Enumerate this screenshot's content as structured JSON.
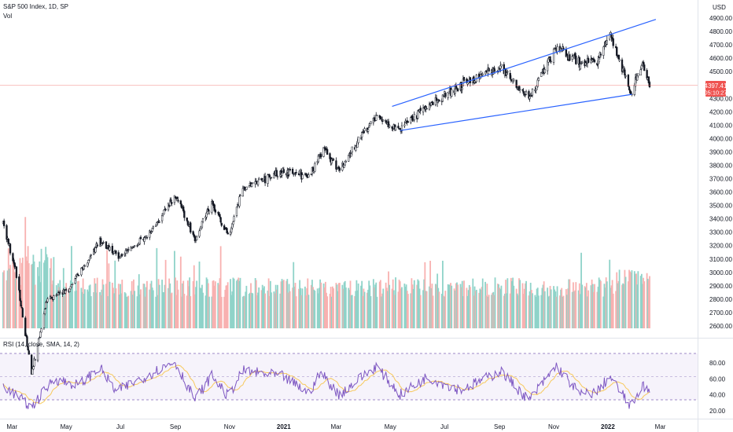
{
  "header": {
    "title": "S&P 500 Index, 1D, SP",
    "vol_label": "Vol",
    "currency": "USD"
  },
  "price_tag": {
    "value": "4397.41",
    "countdown": "05:10:27",
    "color": "#ef5350"
  },
  "rsi_header": {
    "label": "RSI (14, close, SMA, 14, 2)"
  },
  "colors": {
    "up": "#26a69a",
    "down": "#ef5350",
    "candle": "#131722",
    "trendline": "#2962ff",
    "rsi": "#7e57c2",
    "rsi_ma": "#f7c95c",
    "vol_up": "#8fd3c9",
    "vol_down": "#f8b1b0"
  },
  "chart_data": [
    {
      "type": "candlestick",
      "title": "S&P 500 Index, 1D, SP",
      "ylim": [
        2600,
        5000
      ],
      "y_ticks": [
        "4900.00",
        "4800.00",
        "4700.00",
        "4600.00",
        "4500.00",
        "4300.00",
        "4200.00",
        "4100.00",
        "4000.00",
        "3900.00",
        "3800.00",
        "3700.00",
        "3600.00",
        "3500.00",
        "3400.00",
        "3300.00",
        "3200.00",
        "3100.00",
        "3000.00",
        "2900.00",
        "2800.00",
        "2700.00",
        "2600.00"
      ],
      "x_ticks": [
        "Mar",
        "May",
        "Jul",
        "Sep",
        "Nov",
        "2021",
        "Mar",
        "May",
        "Jul",
        "Sep",
        "Nov",
        "2022",
        "Mar"
      ],
      "last_price": 4397.41,
      "close_path": [
        [
          "2020-02-20",
          3370
        ],
        [
          "2020-03-05",
          3020
        ],
        [
          "2020-03-23",
          2240
        ],
        [
          "2020-04-09",
          2790
        ],
        [
          "2020-05-05",
          2880
        ],
        [
          "2020-06-08",
          3230
        ],
        [
          "2020-07-01",
          3120
        ],
        [
          "2020-08-01",
          3280
        ],
        [
          "2020-09-02",
          3580
        ],
        [
          "2020-09-23",
          3240
        ],
        [
          "2020-10-12",
          3530
        ],
        [
          "2020-10-30",
          3270
        ],
        [
          "2020-11-16",
          3620
        ],
        [
          "2020-12-31",
          3756
        ],
        [
          "2021-01-29",
          3714
        ],
        [
          "2021-02-15",
          3930
        ],
        [
          "2021-03-04",
          3770
        ],
        [
          "2021-04-15",
          4170
        ],
        [
          "2021-05-12",
          4063
        ],
        [
          "2021-06-11",
          4247
        ],
        [
          "2021-07-26",
          4422
        ],
        [
          "2021-08-27",
          4509
        ],
        [
          "2021-09-02",
          4537
        ],
        [
          "2021-10-04",
          4300
        ],
        [
          "2021-11-04",
          4680
        ],
        [
          "2021-11-30",
          4567
        ],
        [
          "2021-12-20",
          4568
        ],
        [
          "2022-01-03",
          4796
        ],
        [
          "2022-01-27",
          4326
        ],
        [
          "2022-02-09",
          4587
        ],
        [
          "2022-02-17",
          4397
        ]
      ],
      "trendlines": [
        {
          "name": "upper",
          "from": [
            "2021-05-03",
            4240
          ],
          "to": [
            "2022-02-24",
            4890
          ]
        },
        {
          "name": "lower",
          "from": [
            "2021-05-12",
            4060
          ],
          "to": [
            "2022-01-28",
            4330
          ]
        }
      ]
    },
    {
      "type": "bar",
      "title": "Vol",
      "note": "volume histogram, colored by candle direction"
    },
    {
      "type": "line",
      "title": "RSI (14, close, SMA, 14, 2)",
      "ylim": [
        15,
        88
      ],
      "y_ticks": [
        "80.00",
        "60.00",
        "40.00",
        "20.00"
      ],
      "band": [
        30,
        70
      ],
      "midline": 50,
      "anchors": [
        [
          "2020-02-20",
          52
        ],
        [
          "2020-03-23",
          24
        ],
        [
          "2020-04-17",
          60
        ],
        [
          "2020-05-15",
          52
        ],
        [
          "2020-06-08",
          74
        ],
        [
          "2020-06-26",
          44
        ],
        [
          "2020-08-31",
          82
        ],
        [
          "2020-09-23",
          34
        ],
        [
          "2020-10-12",
          64
        ],
        [
          "2020-10-30",
          38
        ],
        [
          "2020-11-16",
          70
        ],
        [
          "2020-12-31",
          63
        ],
        [
          "2021-01-29",
          42
        ],
        [
          "2021-02-12",
          68
        ],
        [
          "2021-03-04",
          40
        ],
        [
          "2021-04-15",
          76
        ],
        [
          "2021-05-12",
          40
        ],
        [
          "2021-06-11",
          62
        ],
        [
          "2021-07-19",
          46
        ],
        [
          "2021-08-27",
          66
        ],
        [
          "2021-09-02",
          70
        ],
        [
          "2021-10-04",
          33
        ],
        [
          "2021-11-04",
          76
        ],
        [
          "2021-12-01",
          40
        ],
        [
          "2021-12-20",
          44
        ],
        [
          "2022-01-03",
          63
        ],
        [
          "2022-01-27",
          25
        ],
        [
          "2022-02-09",
          54
        ],
        [
          "2022-02-17",
          41
        ]
      ]
    }
  ]
}
